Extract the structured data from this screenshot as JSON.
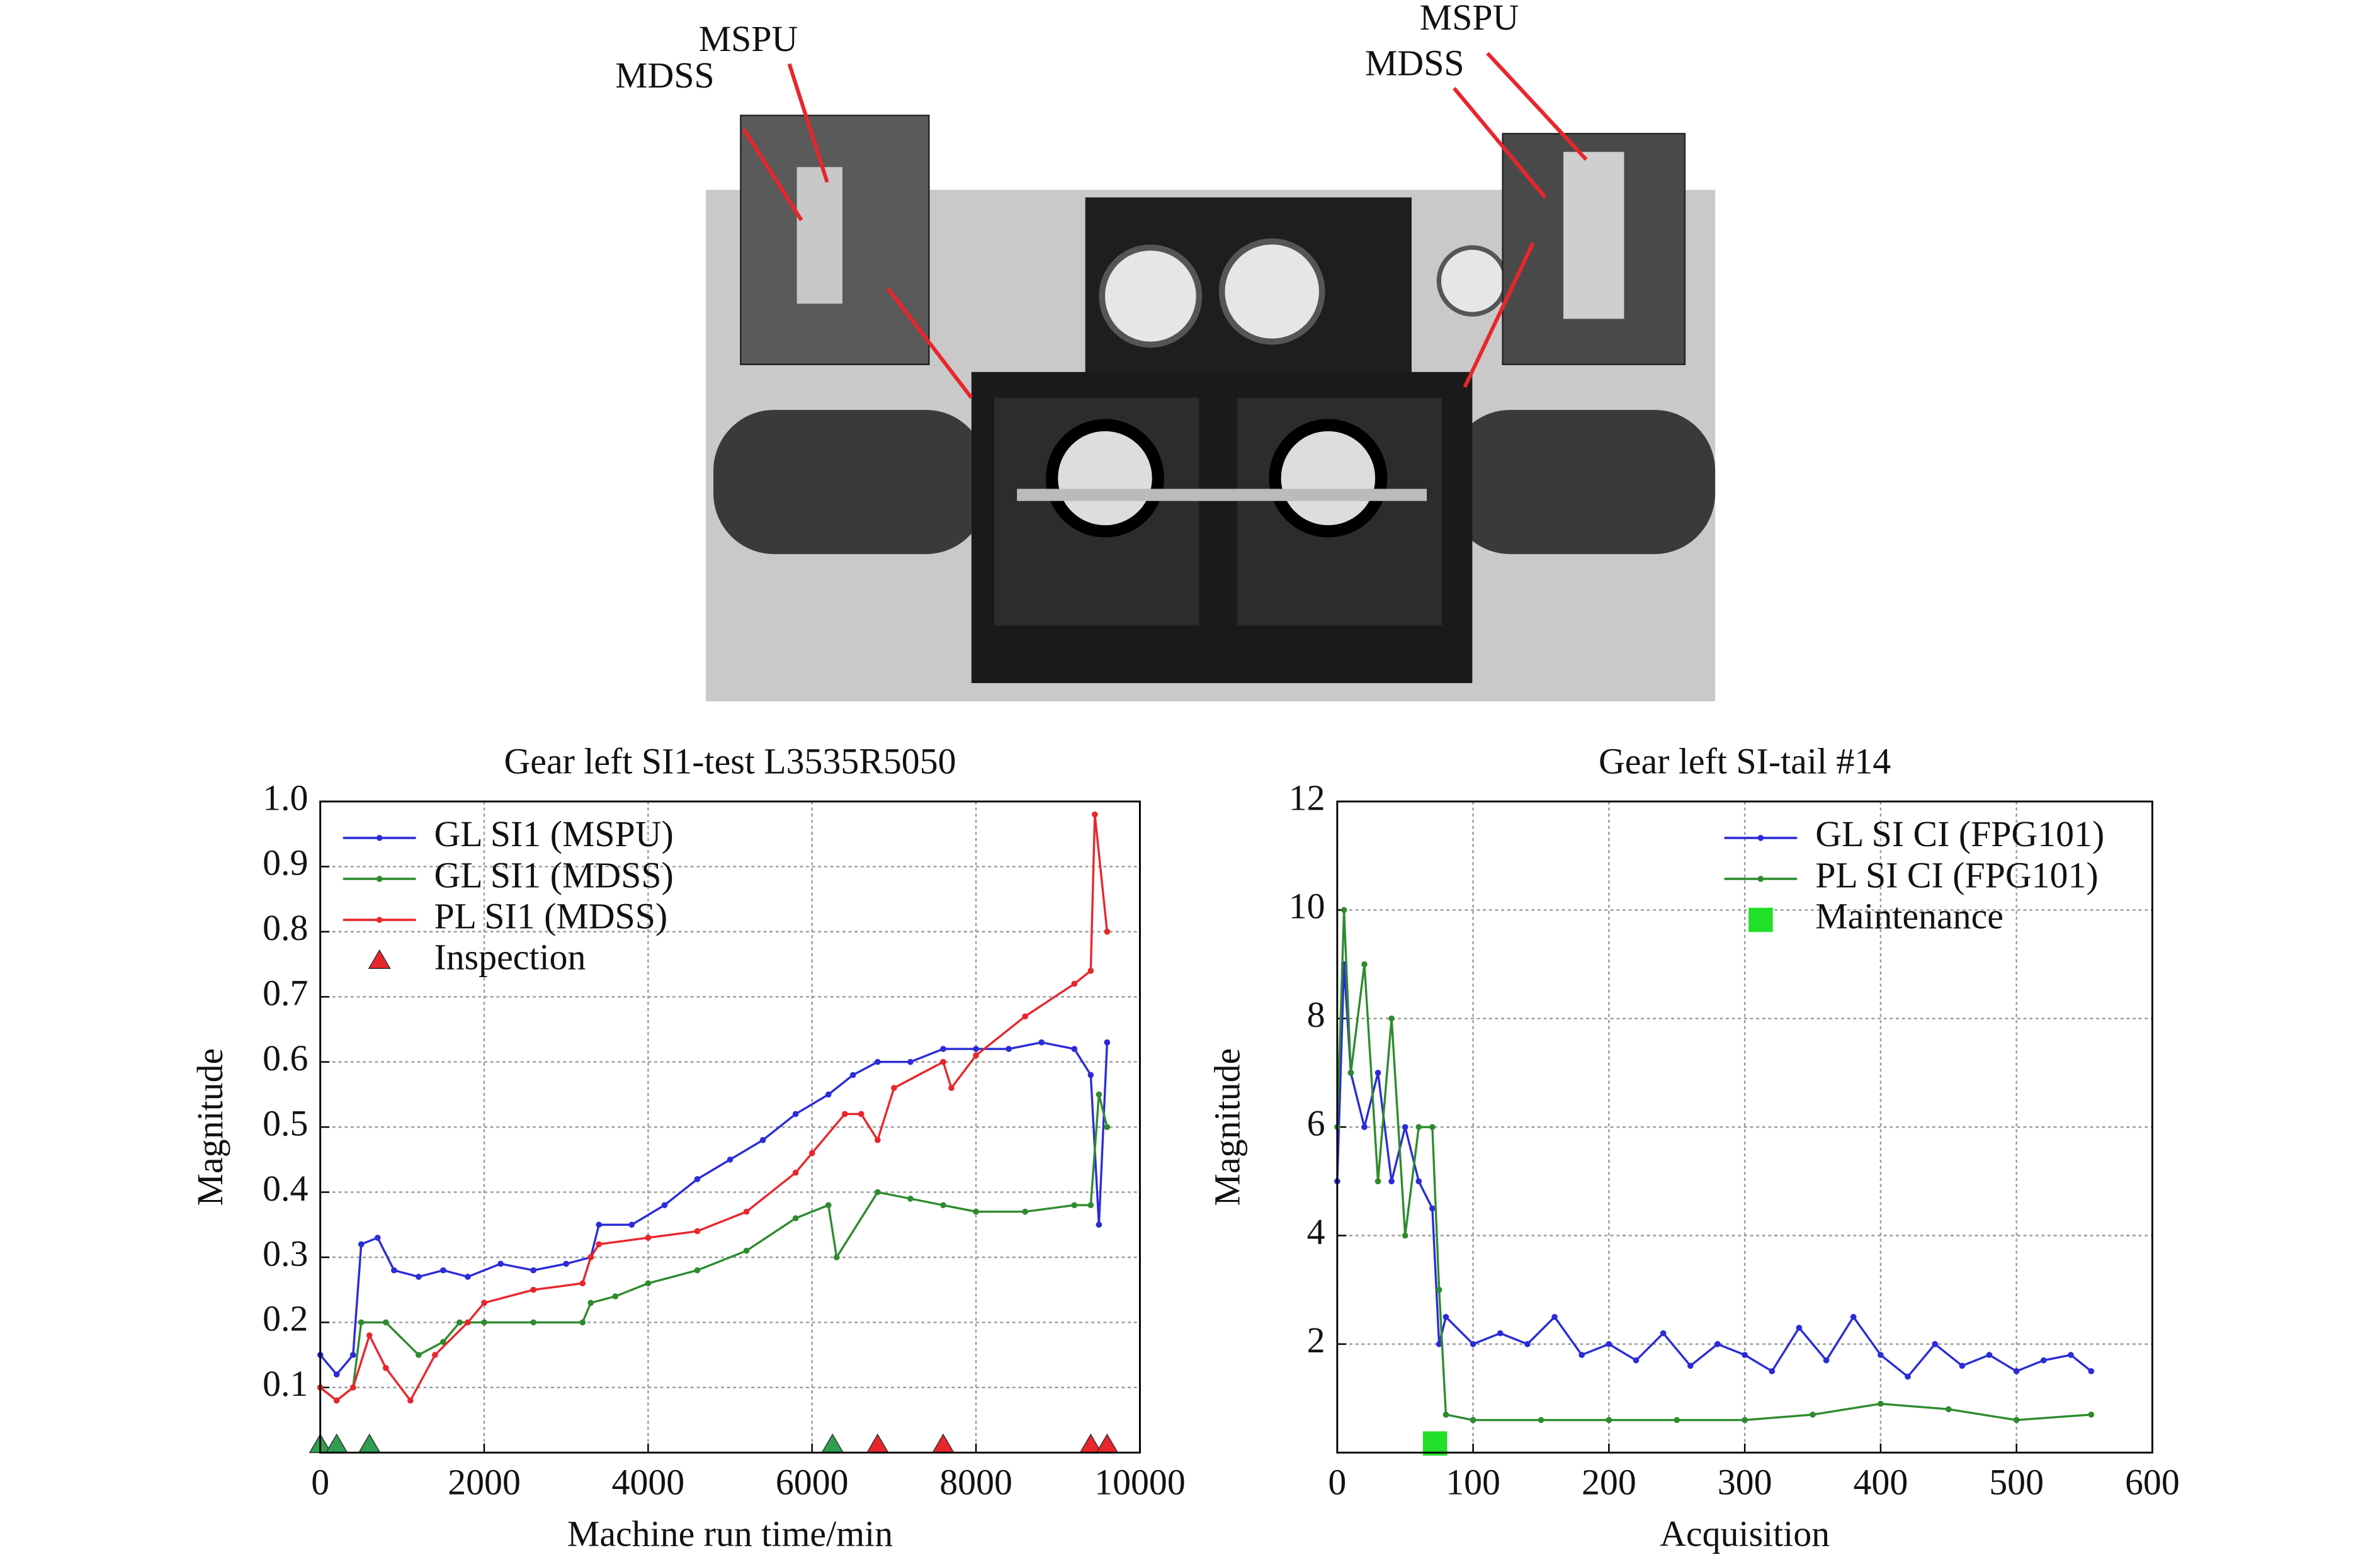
{
  "photo": {
    "labels": [
      "MSPU",
      "MDSS",
      "MSPU",
      "MDSS"
    ]
  },
  "chart_data": [
    {
      "type": "line",
      "title": "Gear left SI1-test L3535R5050",
      "xlabel": "Machine run time/min",
      "ylabel": "Magnitude",
      "xlim": [
        0,
        10000
      ],
      "xticks": [
        0,
        2000,
        4000,
        6000,
        8000,
        10000
      ],
      "ylim": [
        0,
        1
      ],
      "yticks": [
        0.1,
        0.2,
        0.3,
        0.4,
        0.5,
        0.6,
        0.7,
        0.8,
        0.9,
        {
          "value": 1,
          "label": "1.0"
        }
      ],
      "grid": true,
      "legend": "upper left",
      "series": [
        {
          "name": "GL SI1 (MSPU)",
          "color": "#2b2bd8",
          "marker": "dot",
          "x": [
            0,
            200,
            400,
            500,
            700,
            900,
            1200,
            1500,
            1800,
            2200,
            2600,
            3000,
            3300,
            3400,
            3800,
            4200,
            4600,
            5000,
            5400,
            5800,
            6200,
            6500,
            6800,
            7200,
            7600,
            8000,
            8400,
            8800,
            9200,
            9400,
            9500,
            9600
          ],
          "values": [
            0.15,
            0.12,
            0.15,
            0.32,
            0.33,
            0.28,
            0.27,
            0.28,
            0.27,
            0.29,
            0.28,
            0.29,
            0.3,
            0.35,
            0.35,
            0.38,
            0.42,
            0.45,
            0.48,
            0.52,
            0.55,
            0.58,
            0.6,
            0.6,
            0.62,
            0.62,
            0.62,
            0.63,
            0.62,
            0.58,
            0.35,
            0.63
          ]
        },
        {
          "name": "GL SI1 (MDSS)",
          "color": "#2e8b2e",
          "marker": "dot",
          "x": [
            0,
            200,
            400,
            500,
            800,
            1200,
            1500,
            1700,
            2000,
            2600,
            3200,
            3300,
            3600,
            4000,
            4600,
            5200,
            5800,
            6200,
            6300,
            6800,
            7200,
            7600,
            8000,
            8600,
            9200,
            9400,
            9500,
            9600
          ],
          "values": [
            0.1,
            0.08,
            0.1,
            0.2,
            0.2,
            0.15,
            0.17,
            0.2,
            0.2,
            0.2,
            0.2,
            0.23,
            0.24,
            0.26,
            0.28,
            0.31,
            0.36,
            0.38,
            0.3,
            0.4,
            0.39,
            0.38,
            0.37,
            0.37,
            0.38,
            0.38,
            0.55,
            0.5
          ]
        },
        {
          "name": "PL SI1 (MDSS)",
          "color": "#e8262b",
          "marker": "dot",
          "x": [
            0,
            200,
            400,
            600,
            800,
            1100,
            1400,
            1800,
            2000,
            2600,
            3200,
            3300,
            3400,
            4000,
            4600,
            5200,
            5800,
            6000,
            6400,
            6600,
            6800,
            7000,
            7600,
            7700,
            8000,
            8600,
            9200,
            9400,
            9450,
            9600
          ],
          "values": [
            0.1,
            0.08,
            0.1,
            0.18,
            0.13,
            0.08,
            0.15,
            0.2,
            0.23,
            0.25,
            0.26,
            0.3,
            0.32,
            0.33,
            0.34,
            0.37,
            0.43,
            0.46,
            0.52,
            0.52,
            0.48,
            0.56,
            0.6,
            0.56,
            0.61,
            0.67,
            0.72,
            0.74,
            0.98,
            0.8
          ]
        },
        {
          "name": "Inspection",
          "color": "#e8262b",
          "marker": "triangle",
          "x": [
            6800,
            7600,
            9400,
            9600
          ],
          "values": [
            0,
            0,
            0,
            0
          ]
        },
        {
          "color": "#2e9e4f",
          "marker": "triangle",
          "x": [
            0,
            200,
            600,
            6250
          ],
          "values": [
            0,
            0,
            0,
            0
          ]
        }
      ]
    },
    {
      "type": "line",
      "title": "Gear left SI-tail #14",
      "xlabel": "Acquisition",
      "ylabel": "Magnitude",
      "xlim": [
        0,
        600
      ],
      "xticks": [
        0,
        100,
        200,
        300,
        400,
        500,
        600
      ],
      "ylim": [
        0,
        12
      ],
      "yticks": [
        2,
        4,
        6,
        8,
        10,
        12
      ],
      "grid": true,
      "legend": "upper right",
      "series": [
        {
          "name": "GL SI CI (FPG101)",
          "color": "#2b2bd8",
          "marker": "dot",
          "x": [
            0,
            5,
            10,
            20,
            30,
            40,
            50,
            60,
            70,
            75,
            80,
            100,
            120,
            140,
            160,
            180,
            200,
            220,
            240,
            260,
            280,
            300,
            320,
            340,
            360,
            380,
            400,
            420,
            440,
            460,
            480,
            500,
            520,
            540,
            555
          ],
          "values": [
            5,
            9,
            7,
            6,
            7,
            5,
            6,
            5,
            4.5,
            2,
            2.5,
            2,
            2.2,
            2,
            2.5,
            1.8,
            2,
            1.7,
            2.2,
            1.6,
            2,
            1.8,
            1.5,
            2.3,
            1.7,
            2.5,
            1.8,
            1.4,
            2,
            1.6,
            1.8,
            1.5,
            1.7,
            1.8,
            1.5
          ]
        },
        {
          "name": "PL SI CI (FPG101)",
          "color": "#2e8b2e",
          "marker": "dot",
          "x": [
            0,
            5,
            10,
            20,
            30,
            40,
            50,
            60,
            70,
            75,
            80,
            100,
            150,
            200,
            250,
            300,
            350,
            400,
            450,
            500,
            555
          ],
          "values": [
            6,
            10,
            7,
            9,
            5,
            8,
            4,
            6,
            6,
            3,
            0.7,
            0.6,
            0.6,
            0.6,
            0.6,
            0.6,
            0.7,
            0.9,
            0.8,
            0.6,
            0.7
          ]
        },
        {
          "name": "Maintenance",
          "color": "#22e02a",
          "marker": "square",
          "x": [
            72
          ],
          "values": [
            0
          ]
        }
      ]
    }
  ]
}
